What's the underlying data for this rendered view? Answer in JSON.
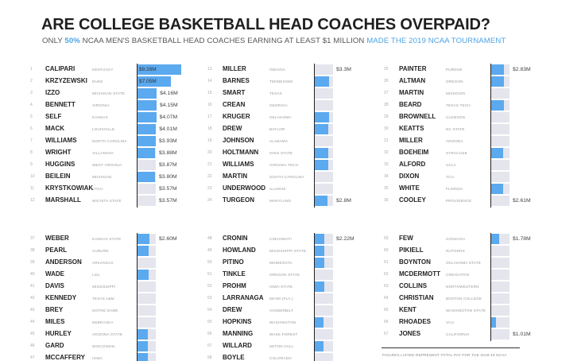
{
  "title": "ARE COLLEGE BASKETBALL HEAD COACHES OVERPAID?",
  "subtitle": {
    "before": "ONLY ",
    "pct": "50%",
    "middle": " NCAA MEN'S BASKETBALL HEAD COACHES EARNING AT LEAST $1 MILLION ",
    "link": "MADE THE 2019 NCAA TOURNAMENT"
  },
  "footnote": "FIGURES LISTED REPRESENT TOTAL PAY FOR THE 2018-19 NCAA",
  "colors": {
    "made_tournament": "#5ba9ee",
    "missed_tournament": "#e5e5ee",
    "highlight_text": "#4da3e6"
  },
  "chart_data": {
    "type": "bar",
    "unit": "USD millions",
    "max_scale": 9.28,
    "columns": [
      {
        "coaches": [
          {
            "rank": "1",
            "coach": "CALIPARI",
            "school": "KENTUCKY",
            "pay": 9.28,
            "label": "$9.28M",
            "made": true
          },
          {
            "rank": "2",
            "coach": "KRZYZEWSKI",
            "school": "DUKE",
            "pay": 7.05,
            "label": "$7.05M",
            "made": true
          },
          {
            "rank": "3",
            "coach": "IZZO",
            "school": "MICHIGAN STATE",
            "pay": 4.16,
            "label": "$4.16M",
            "made": true
          },
          {
            "rank": "4",
            "coach": "BENNETT",
            "school": "VIRGINIA",
            "pay": 4.15,
            "label": "$4.15M",
            "made": true
          },
          {
            "rank": "5",
            "coach": "SELF",
            "school": "KANSAS",
            "pay": 4.07,
            "label": "$4.07M",
            "made": true
          },
          {
            "rank": "6",
            "coach": "MACK",
            "school": "LOUISVILLE",
            "pay": 4.01,
            "label": "$4.01M",
            "made": true
          },
          {
            "rank": "7",
            "coach": "WILLIAMS",
            "school": "NORTH CAROLINA",
            "pay": 3.93,
            "label": "$3.93M",
            "made": true
          },
          {
            "rank": "8",
            "coach": "WRIGHT",
            "school": "VILLANOVA",
            "pay": 3.88,
            "label": "$3.88M",
            "made": true
          },
          {
            "rank": "9",
            "coach": "HUGGINS",
            "school": "WEST VIRGINIA",
            "pay": 3.87,
            "label": "$3.87M",
            "made": false
          },
          {
            "rank": "10",
            "coach": "BEILEIN",
            "school": "MICHIGAN",
            "pay": 3.8,
            "label": "$3.80M",
            "made": true
          },
          {
            "rank": "11",
            "coach": "KRYSTKOWIAK",
            "school": "UTAH",
            "pay": 3.57,
            "label": "$3.57M",
            "made": false
          },
          {
            "rank": "12",
            "coach": "MARSHALL",
            "school": "WICHITA STATE",
            "pay": 3.57,
            "label": "$3.57M",
            "made": false
          }
        ]
      },
      {
        "coaches": [
          {
            "rank": "13",
            "coach": "MILLER",
            "school": "INDIANA",
            "pay": 3.3,
            "label": "$3.3M",
            "made": false
          },
          {
            "rank": "14",
            "coach": "BARNES",
            "school": "TENNESSEE",
            "pay": 3.2,
            "label": "",
            "made": true
          },
          {
            "rank": "15",
            "coach": "SMART",
            "school": "TEXAS",
            "pay": 3.15,
            "label": "",
            "made": false
          },
          {
            "rank": "16",
            "coach": "CREAN",
            "school": "GEORGIA",
            "pay": 3.15,
            "label": "",
            "made": false
          },
          {
            "rank": "17",
            "coach": "KRUGER",
            "school": "OKLAHOMA",
            "pay": 3.1,
            "label": "",
            "made": true
          },
          {
            "rank": "18",
            "coach": "DREW",
            "school": "BAYLOR",
            "pay": 3.05,
            "label": "",
            "made": true
          },
          {
            "rank": "19",
            "coach": "JOHNSON",
            "school": "ALABAMA",
            "pay": 3.0,
            "label": "",
            "made": false
          },
          {
            "rank": "20",
            "coach": "HOLTMANN",
            "school": "OHIO STATE",
            "pay": 3.0,
            "label": "",
            "made": true
          },
          {
            "rank": "21",
            "coach": "WILLIAMS",
            "school": "VIRGINIA TECH",
            "pay": 3.0,
            "label": "",
            "made": true
          },
          {
            "rank": "22",
            "coach": "MARTIN",
            "school": "SOUTH CAROLINA",
            "pay": 2.9,
            "label": "",
            "made": false
          },
          {
            "rank": "23",
            "coach": "UNDERWOOD",
            "school": "ILLINOIS",
            "pay": 2.85,
            "label": "",
            "made": false
          },
          {
            "rank": "24",
            "coach": "TURGEON",
            "school": "MARYLAND",
            "pay": 2.8,
            "label": "$2.8M",
            "made": true
          }
        ]
      },
      {
        "coaches": [
          {
            "rank": "25",
            "coach": "PAINTER",
            "school": "PURDUE",
            "pay": 2.83,
            "label": "$2.83M",
            "made": true
          },
          {
            "rank": "26",
            "coach": "ALTMAN",
            "school": "OREGON",
            "pay": 2.8,
            "label": "",
            "made": true
          },
          {
            "rank": "27",
            "coach": "MARTIN",
            "school": "MISSOURI",
            "pay": 2.8,
            "label": "",
            "made": false
          },
          {
            "rank": "28",
            "coach": "BEARD",
            "school": "TEXAS TECH",
            "pay": 2.8,
            "label": "",
            "made": true
          },
          {
            "rank": "29",
            "coach": "BROWNELL",
            "school": "CLEMSON",
            "pay": 2.75,
            "label": "",
            "made": false
          },
          {
            "rank": "30",
            "coach": "KEATTS",
            "school": "NC STATE",
            "pay": 2.75,
            "label": "",
            "made": false
          },
          {
            "rank": "31",
            "coach": "MILLER",
            "school": "ARIZONA",
            "pay": 2.75,
            "label": "",
            "made": false
          },
          {
            "rank": "32",
            "coach": "BOEHEIM",
            "school": "SYRACUSE",
            "pay": 2.7,
            "label": "",
            "made": true
          },
          {
            "rank": "33",
            "coach": "ALFORD",
            "school": "UCLA",
            "pay": 2.7,
            "label": "",
            "made": false
          },
          {
            "rank": "34",
            "coach": "DIXON",
            "school": "TCU",
            "pay": 2.65,
            "label": "",
            "made": false
          },
          {
            "rank": "35",
            "coach": "WHITE",
            "school": "FLORIDA",
            "pay": 2.65,
            "label": "",
            "made": true
          },
          {
            "rank": "36",
            "coach": "COOLEY",
            "school": "PROVIDENCE",
            "pay": 2.61,
            "label": "$2.61M",
            "made": false
          }
        ]
      },
      {
        "coaches": [
          {
            "rank": "37",
            "coach": "WEBER",
            "school": "KANSAS STATE",
            "pay": 2.6,
            "label": "$2.60M",
            "made": true
          },
          {
            "rank": "38",
            "coach": "PEARL",
            "school": "AUBURN",
            "pay": 2.55,
            "label": "",
            "made": true
          },
          {
            "rank": "39",
            "coach": "ANDERSON",
            "school": "ARKANSAS",
            "pay": 2.5,
            "label": "",
            "made": false
          },
          {
            "rank": "40",
            "coach": "WADE",
            "school": "LSU",
            "pay": 2.5,
            "label": "",
            "made": true
          },
          {
            "rank": "41",
            "coach": "DAVIS",
            "school": "MISSISSIPPI",
            "pay": 2.45,
            "label": "",
            "made": false
          },
          {
            "rank": "42",
            "coach": "KENNEDY",
            "school": "TEXAS A&M",
            "pay": 2.45,
            "label": "",
            "made": false
          },
          {
            "rank": "43",
            "coach": "BREY",
            "school": "NOTRE DAME",
            "pay": 2.4,
            "label": "",
            "made": false
          },
          {
            "rank": "44",
            "coach": "MILES",
            "school": "NEBRASKA",
            "pay": 2.4,
            "label": "",
            "made": false
          },
          {
            "rank": "45",
            "coach": "HURLEY",
            "school": "ARIZONA STATE",
            "pay": 2.4,
            "label": "",
            "made": true
          },
          {
            "rank": "46",
            "coach": "GARD",
            "school": "WISCONSIN",
            "pay": 2.35,
            "label": "",
            "made": true
          },
          {
            "rank": "47",
            "coach": "MCCAFFERY",
            "school": "IOWA",
            "pay": 2.35,
            "label": "",
            "made": true
          }
        ]
      },
      {
        "coaches": [
          {
            "rank": "48",
            "coach": "CRONIN",
            "school": "CINCINNATI",
            "pay": 2.22,
            "label": "$2.22M",
            "made": true
          },
          {
            "rank": "49",
            "coach": "HOWLAND",
            "school": "MISSISSIPPI STATE",
            "pay": 2.2,
            "label": "",
            "made": true
          },
          {
            "rank": "50",
            "coach": "PITINO",
            "school": "MINNESOTA",
            "pay": 2.2,
            "label": "",
            "made": true
          },
          {
            "rank": "51",
            "coach": "TINKLE",
            "school": "OREGON STATE",
            "pay": 2.15,
            "label": "",
            "made": false
          },
          {
            "rank": "52",
            "coach": "PROHM",
            "school": "IOWA STATE",
            "pay": 2.15,
            "label": "",
            "made": true
          },
          {
            "rank": "53",
            "coach": "LARRANAGA",
            "school": "MIAMI (FLA.)",
            "pay": 2.1,
            "label": "",
            "made": false
          },
          {
            "rank": "54",
            "coach": "DREW",
            "school": "VANDERBILT",
            "pay": 2.1,
            "label": "",
            "made": false
          },
          {
            "rank": "55",
            "coach": "HOPKINS",
            "school": "WASHINGTON",
            "pay": 2.05,
            "label": "",
            "made": true
          },
          {
            "rank": "56",
            "coach": "MANNING",
            "school": "WAKE FOREST",
            "pay": 2.05,
            "label": "",
            "made": false
          },
          {
            "rank": "57",
            "coach": "WILLARD",
            "school": "SETON HALL",
            "pay": 2.0,
            "label": "",
            "made": true
          },
          {
            "rank": "58",
            "coach": "BOYLE",
            "school": "COLORADO",
            "pay": 2.0,
            "label": "",
            "made": false
          }
        ]
      },
      {
        "coaches": [
          {
            "rank": "59",
            "coach": "FEW",
            "school": "GONZAGA",
            "pay": 1.78,
            "label": "$1.78M",
            "made": true
          },
          {
            "rank": "60",
            "coach": "PIKIELL",
            "school": "RUTGERS",
            "pay": 1.6,
            "label": "",
            "made": false
          },
          {
            "rank": "61",
            "coach": "BOYNTON",
            "school": "OKLAHOMA STATE",
            "pay": 1.5,
            "label": "",
            "made": false
          },
          {
            "rank": "62",
            "coach": "MCDERMOTT",
            "school": "CREIGHTON",
            "pay": 1.45,
            "label": "",
            "made": false
          },
          {
            "rank": "63",
            "coach": "COLLINS",
            "school": "NORTHWESTERN",
            "pay": 1.4,
            "label": "",
            "made": false
          },
          {
            "rank": "64",
            "coach": "CHRISTIAN",
            "school": "BOSTON COLLEGE",
            "pay": 1.35,
            "label": "",
            "made": false
          },
          {
            "rank": "65",
            "coach": "KENT",
            "school": "WASHINGTON STATE",
            "pay": 1.25,
            "label": "",
            "made": false
          },
          {
            "rank": "66",
            "coach": "RHOADES",
            "school": "VCU",
            "pay": 1.15,
            "label": "",
            "made": true
          },
          {
            "rank": "67",
            "coach": "JONES",
            "school": "CALIFORNIA",
            "pay": 1.01,
            "label": "$1.01M",
            "made": false
          }
        ]
      }
    ]
  }
}
